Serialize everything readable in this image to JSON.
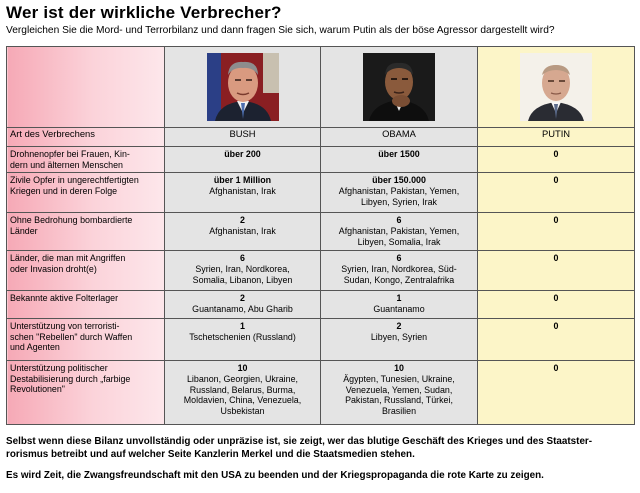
{
  "title": "Wer ist der wirkliche Verbrecher?",
  "subtitle": "Vergleichen Sie die Mord- und Terrorbilanz und dann fragen Sie sich, warum Putin als der böse Agressor dargestellt wird?",
  "header": {
    "category_label": "Art des Verbrechens",
    "names": [
      "BUSH",
      "OBAMA",
      "PUTIN"
    ]
  },
  "rows": [
    {
      "label": [
        "Drohnenopfer bei Frauen, Kin-",
        "dern und älternen Menschen"
      ],
      "bush": {
        "value": "über 200",
        "details": []
      },
      "obama": {
        "value": "über 1500",
        "details": []
      },
      "putin": {
        "value": "0"
      }
    },
    {
      "label": [
        "Zivile Opfer in ungerechtfertigten",
        "Kriegen und in deren Folge"
      ],
      "bush": {
        "value": "über 1 Million",
        "details": [
          "Afghanistan, Irak"
        ]
      },
      "obama": {
        "value": "über 150.000",
        "details": [
          "Afghanistan, Pakistan, Yemen,",
          "Libyen, Syrien, Irak"
        ]
      },
      "putin": {
        "value": "0"
      }
    },
    {
      "label": [
        "Ohne Bedrohung bombardierte",
        "Länder"
      ],
      "bush": {
        "value": "2",
        "details": [
          "Afghanistan, Irak"
        ]
      },
      "obama": {
        "value": "6",
        "details": [
          "Afghanistan, Pakistan, Yemen,",
          "Libyen, Somalia, Irak"
        ]
      },
      "putin": {
        "value": "0"
      }
    },
    {
      "label": [
        "Länder, die man mit Angriffen",
        "oder Invasion droht(e)"
      ],
      "bush": {
        "value": "6",
        "details": [
          "Syrien, Iran, Nordkorea,",
          "Somalia, Libanon, Libyen"
        ]
      },
      "obama": {
        "value": "6",
        "details": [
          "Syrien, Iran, Nordkorea, Süd-",
          "Sudan, Kongo, Zentralafrika"
        ]
      },
      "putin": {
        "value": "0"
      }
    },
    {
      "label": [
        "Bekannte aktive Folterlager"
      ],
      "bush": {
        "value": "2",
        "details": [
          "Guantanamo, Abu Gharib"
        ]
      },
      "obama": {
        "value": "1",
        "details": [
          "Guantanamo"
        ]
      },
      "putin": {
        "value": "0"
      }
    },
    {
      "label": [
        "Unterstützung von terroristi-",
        "schen \"Rebellen\" durch Waffen",
        "und Agenten"
      ],
      "bush": {
        "value": "1",
        "details": [
          "Tschetschenien (Russland)"
        ]
      },
      "obama": {
        "value": "2",
        "details": [
          "Libyen, Syrien"
        ]
      },
      "putin": {
        "value": "0"
      }
    },
    {
      "label": [
        "Unterstützung politischer",
        "Destabilisierung durch „farbige",
        "Revolutionen\""
      ],
      "bush": {
        "value": "10",
        "details": [
          "Libanon, Georgien, Ukraine,",
          "Russland, Belarus, Burma,",
          "Moldavien, China, Venezuela,",
          "Usbekistan"
        ]
      },
      "obama": {
        "value": "10",
        "details": [
          "Ägypten, Tunesien, Ukraine,",
          "Venezuela, Yemen, Sudan,",
          "Pakistan, Russland, Türkei,",
          "Brasilien"
        ]
      },
      "putin": {
        "value": "0"
      }
    }
  ],
  "footer": {
    "note": "Selbst wenn diese Bilanz unvollständig oder unpräzise ist, sie zeigt, wer das blutige Geschäft des Krieges und des Staatster-rorismus betreibt und auf welcher Seite Kanzlerin Merkel und die Staatsmedien stehen.",
    "call": "Es wird Zeit, die Zwangsfreundschaft mit den USA zu beenden und der Kriegspropaganda die rote Karte zu zeigen."
  }
}
